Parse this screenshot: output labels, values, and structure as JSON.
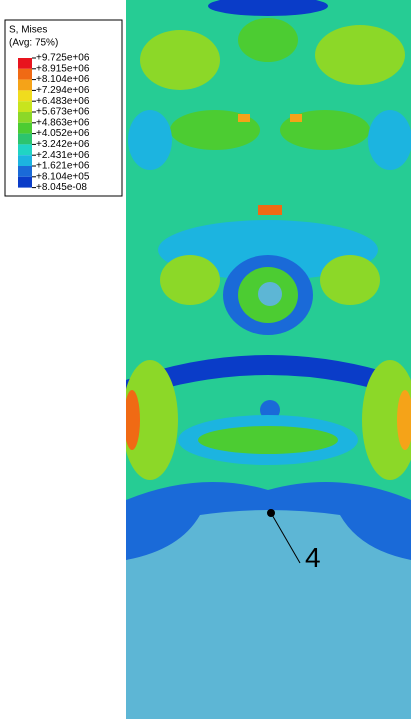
{
  "legend": {
    "title": "S, Mises",
    "subtitle": "(Avg: 75%)",
    "labels": [
      "+9.725e+06",
      "+8.915e+06",
      "+8.104e+06",
      "+7.294e+06",
      "+6.483e+06",
      "+5.673e+06",
      "+4.863e+06",
      "+4.052e+06",
      "+3.242e+06",
      "+2.431e+06",
      "+1.621e+06",
      "+8.104e+05",
      "+8.045e-08"
    ],
    "colors": [
      "#e8141e",
      "#f06a14",
      "#f5a318",
      "#f0dc1e",
      "#c8e41e",
      "#8cd828",
      "#4ccc32",
      "#2cc46e",
      "#20d4c4",
      "#1cb4e0",
      "#1a6ad8",
      "#0a3cc8"
    ]
  },
  "annotation": {
    "label": "4"
  }
}
